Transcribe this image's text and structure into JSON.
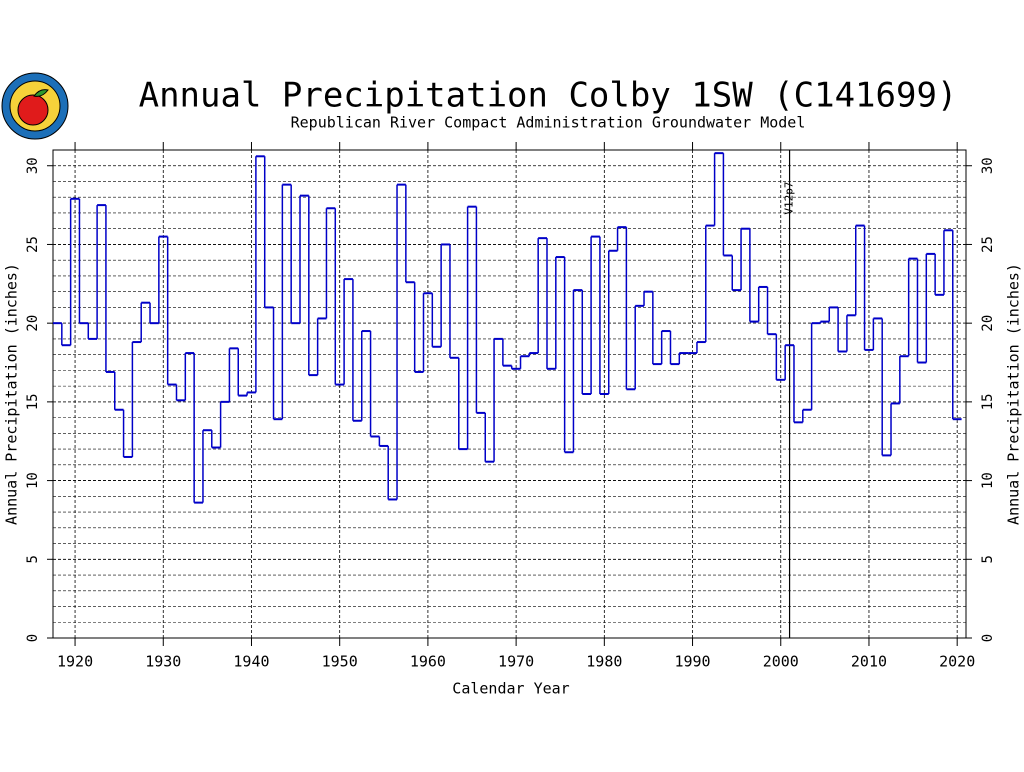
{
  "chart_data": {
    "type": "step",
    "title": "Annual Precipitation Colby 1SW (C141699)",
    "subtitle": "Republican River Compact Administration Groundwater Model",
    "x_label": "Calendar Year",
    "y_label": "Annual Precipitation (inches)",
    "annotation": {
      "x": 2001,
      "label": "V12p7"
    },
    "x": [
      1918,
      1919,
      1920,
      1921,
      1922,
      1923,
      1924,
      1925,
      1926,
      1927,
      1928,
      1929,
      1930,
      1931,
      1932,
      1933,
      1934,
      1935,
      1936,
      1937,
      1938,
      1939,
      1940,
      1941,
      1942,
      1943,
      1944,
      1945,
      1946,
      1947,
      1948,
      1949,
      1950,
      1951,
      1952,
      1953,
      1954,
      1955,
      1956,
      1957,
      1958,
      1959,
      1960,
      1961,
      1962,
      1963,
      1964,
      1965,
      1966,
      1967,
      1968,
      1969,
      1970,
      1971,
      1972,
      1973,
      1974,
      1975,
      1976,
      1977,
      1978,
      1979,
      1980,
      1981,
      1982,
      1983,
      1984,
      1985,
      1986,
      1987,
      1988,
      1989,
      1990,
      1991,
      1992,
      1993,
      1994,
      1995,
      1996,
      1997,
      1998,
      1999,
      2000,
      2001,
      2002,
      2003,
      2004,
      2005,
      2006,
      2007,
      2008,
      2009,
      2010,
      2011,
      2012,
      2013,
      2014,
      2015,
      2016,
      2017,
      2018,
      2019,
      2020
    ],
    "series": [
      {
        "name": "Annual Precipitation",
        "color": "#0000c8",
        "values": [
          20.0,
          18.6,
          27.9,
          20.0,
          19.0,
          27.5,
          16.9,
          14.5,
          11.5,
          18.8,
          21.3,
          20.0,
          25.5,
          16.1,
          15.1,
          18.1,
          8.6,
          13.2,
          12.1,
          15.0,
          18.4,
          15.4,
          15.6,
          30.6,
          21.0,
          13.9,
          28.8,
          20.0,
          28.1,
          16.7,
          20.3,
          27.3,
          16.1,
          22.8,
          13.8,
          19.5,
          12.8,
          12.2,
          8.8,
          28.8,
          22.6,
          16.9,
          21.9,
          18.5,
          25.0,
          17.8,
          12.0,
          27.4,
          14.3,
          11.2,
          19.0,
          17.3,
          17.1,
          17.9,
          18.1,
          25.4,
          17.1,
          24.2,
          11.8,
          22.1,
          15.5,
          25.5,
          15.5,
          24.6,
          26.1,
          15.8,
          21.1,
          22.0,
          17.4,
          19.5,
          17.4,
          18.1,
          18.1,
          18.8,
          26.2,
          30.8,
          24.3,
          22.1,
          26.0,
          20.1,
          22.3,
          19.3,
          16.4,
          18.6,
          13.7,
          14.5,
          20.0,
          20.1,
          21.0,
          18.2,
          20.5,
          26.2,
          18.3,
          20.3,
          11.6,
          14.9,
          17.9,
          24.1,
          17.5,
          24.4,
          21.8,
          25.9,
          13.9
        ]
      }
    ],
    "xlim": [
      1917.5,
      2021.0
    ],
    "xticks": [
      1920,
      1930,
      1940,
      1950,
      1960,
      1970,
      1980,
      1990,
      2000,
      2010,
      2020
    ],
    "ylim": [
      0,
      31
    ],
    "yticks": [
      0,
      5,
      10,
      15,
      20,
      25,
      30
    ],
    "y_minor_step": 1,
    "grid": true
  }
}
